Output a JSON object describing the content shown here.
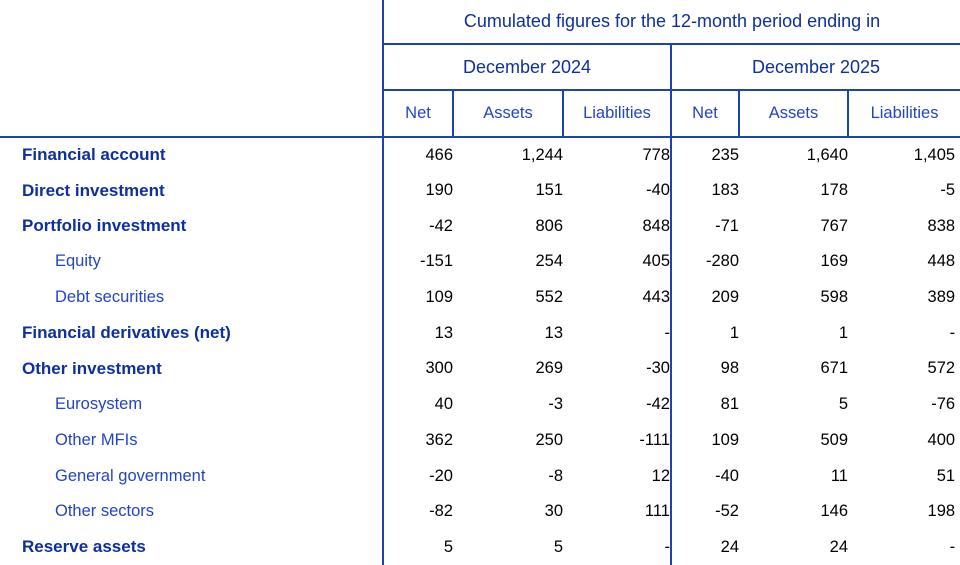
{
  "table": {
    "title": "Cumulated figures for the 12-month period ending in",
    "period_headers": [
      "December 2024",
      "December 2025"
    ],
    "measure_headers": [
      "Net",
      "Assets",
      "Liabilities"
    ],
    "rows": [
      {
        "label": "Financial account",
        "level": "main",
        "values": [
          "466",
          "1,244",
          "778",
          "235",
          "1,640",
          "1,405"
        ]
      },
      {
        "label": "Direct investment",
        "level": "main",
        "values": [
          "190",
          "151",
          "-40",
          "183",
          "178",
          "-5"
        ]
      },
      {
        "label": "Portfolio investment",
        "level": "main",
        "values": [
          "-42",
          "806",
          "848",
          "-71",
          "767",
          "838"
        ]
      },
      {
        "label": "Equity",
        "level": "sub",
        "values": [
          "-151",
          "254",
          "405",
          "-280",
          "169",
          "448"
        ]
      },
      {
        "label": "Debt securities",
        "level": "sub",
        "values": [
          "109",
          "552",
          "443",
          "209",
          "598",
          "389"
        ]
      },
      {
        "label": "Financial derivatives (net)",
        "level": "main",
        "values": [
          "13",
          "13",
          "-",
          "1",
          "1",
          "-"
        ]
      },
      {
        "label": "Other investment",
        "level": "main",
        "values": [
          "300",
          "269",
          "-30",
          "98",
          "671",
          "572"
        ]
      },
      {
        "label": "Eurosystem",
        "level": "sub",
        "values": [
          "40",
          "-3",
          "-42",
          "81",
          "5",
          "-76"
        ]
      },
      {
        "label": "Other MFIs",
        "level": "sub",
        "values": [
          "362",
          "250",
          "-111",
          "109",
          "509",
          "400"
        ]
      },
      {
        "label": "General government",
        "level": "sub",
        "values": [
          "-20",
          "-8",
          "12",
          "-40",
          "11",
          "51"
        ]
      },
      {
        "label": "Other sectors",
        "level": "sub",
        "values": [
          "-82",
          "30",
          "111",
          "-52",
          "146",
          "198"
        ]
      },
      {
        "label": "Reserve assets",
        "level": "main",
        "values": [
          "5",
          "5",
          "-",
          "24",
          "24",
          "-"
        ]
      }
    ],
    "colors": {
      "heading_blue": "#0d2f9f",
      "label_blue": "#2244c4",
      "border_blue": "#1c44ac",
      "number_black": "#000000",
      "background": "#ffffff"
    }
  }
}
